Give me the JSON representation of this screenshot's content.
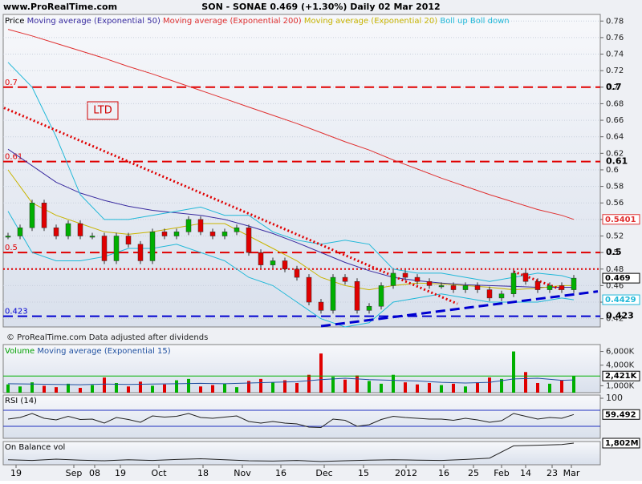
{
  "header": {
    "site": "www.ProRealTime.com",
    "title": "SON - SONAE   0.469 (+1.30%)   Daily 02 Mar 2012",
    "footer": "© ProRealTime.com  Data adjusted after dividends"
  },
  "chart_data": [
    {
      "type": "candlestick",
      "name": "Price",
      "x": [
        1,
        4,
        7,
        10,
        13,
        16,
        19,
        22,
        25,
        28,
        31,
        34,
        37,
        40,
        43,
        46,
        49,
        52,
        55,
        58,
        61,
        64,
        67,
        70,
        73,
        76,
        79,
        82,
        85,
        88,
        91,
        94,
        97,
        100,
        103,
        106,
        109,
        112,
        115,
        118,
        121,
        124,
        127,
        130,
        133,
        136,
        139,
        142
      ],
      "values": [
        0.52,
        0.53,
        0.56,
        0.53,
        0.52,
        0.535,
        0.52,
        0.52,
        0.49,
        0.52,
        0.51,
        0.49,
        0.525,
        0.52,
        0.525,
        0.54,
        0.525,
        0.52,
        0.525,
        0.53,
        0.5,
        0.485,
        0.49,
        0.48,
        0.47,
        0.44,
        0.43,
        0.47,
        0.465,
        0.43,
        0.435,
        0.46,
        0.475,
        0.47,
        0.465,
        0.46,
        0.46,
        0.455,
        0.46,
        0.455,
        0.445,
        0.45,
        0.475,
        0.465,
        0.455,
        0.46,
        0.455,
        0.469
      ],
      "up_color": "#00b000",
      "down_color": "#e00000",
      "series": [
        {
          "name": "Moving average (Exponential 50)",
          "color": "#3a2ca0",
          "x": [
            1,
            7,
            13,
            19,
            25,
            31,
            37,
            43,
            49,
            55,
            61,
            67,
            73,
            79,
            85,
            91,
            97,
            103,
            109,
            115,
            121,
            127,
            133,
            139,
            142
          ],
          "values": [
            0.625,
            0.605,
            0.585,
            0.572,
            0.563,
            0.556,
            0.551,
            0.548,
            0.545,
            0.54,
            0.532,
            0.523,
            0.512,
            0.5,
            0.488,
            0.478,
            0.47,
            0.466,
            0.463,
            0.461,
            0.46,
            0.459,
            0.458,
            0.458,
            0.458
          ]
        },
        {
          "name": "Moving average (Exponential 200)",
          "color": "#e03030",
          "label_box": true,
          "x": [
            1,
            7,
            13,
            19,
            25,
            31,
            37,
            43,
            49,
            55,
            61,
            67,
            73,
            79,
            85,
            91,
            97,
            103,
            109,
            115,
            121,
            127,
            133,
            139,
            142
          ],
          "values": [
            0.77,
            0.762,
            0.753,
            0.744,
            0.735,
            0.725,
            0.716,
            0.706,
            0.696,
            0.686,
            0.676,
            0.666,
            0.656,
            0.645,
            0.634,
            0.624,
            0.612,
            0.601,
            0.59,
            0.58,
            0.57,
            0.561,
            0.552,
            0.545,
            0.5401
          ]
        },
        {
          "name": "Moving average (Exponential 20)",
          "color": "#c8b400",
          "x": [
            1,
            7,
            13,
            19,
            25,
            31,
            37,
            43,
            49,
            55,
            61,
            67,
            73,
            79,
            85,
            91,
            97,
            103,
            109,
            115,
            121,
            127,
            133,
            139,
            142
          ],
          "values": [
            0.6,
            0.56,
            0.545,
            0.535,
            0.525,
            0.522,
            0.525,
            0.53,
            0.535,
            0.535,
            0.52,
            0.505,
            0.49,
            0.47,
            0.46,
            0.455,
            0.46,
            0.463,
            0.462,
            0.46,
            0.458,
            0.455,
            0.457,
            0.46,
            0.46
          ]
        },
        {
          "name": "Boll up",
          "color": "#20b8d8",
          "x": [
            1,
            7,
            13,
            19,
            25,
            31,
            37,
            43,
            49,
            55,
            61,
            67,
            73,
            79,
            85,
            91,
            97,
            103,
            109,
            115,
            121,
            127,
            133,
            139,
            142
          ],
          "values": [
            0.73,
            0.7,
            0.64,
            0.57,
            0.54,
            0.54,
            0.545,
            0.55,
            0.555,
            0.545,
            0.545,
            0.525,
            0.515,
            0.51,
            0.515,
            0.51,
            0.48,
            0.475,
            0.475,
            0.47,
            0.465,
            0.47,
            0.475,
            0.472,
            0.468
          ]
        },
        {
          "name": "Boll down",
          "color": "#20b8d8",
          "label_box": true,
          "x": [
            1,
            7,
            13,
            19,
            25,
            31,
            37,
            43,
            49,
            55,
            61,
            67,
            73,
            79,
            85,
            91,
            97,
            103,
            109,
            115,
            121,
            127,
            133,
            139,
            142
          ],
          "values": [
            0.55,
            0.5,
            0.49,
            0.49,
            0.495,
            0.505,
            0.505,
            0.51,
            0.5,
            0.49,
            0.47,
            0.46,
            0.44,
            0.42,
            0.41,
            0.415,
            0.44,
            0.445,
            0.45,
            0.445,
            0.44,
            0.44,
            0.44,
            0.445,
            0.4429
          ]
        }
      ],
      "ylim": [
        0.41,
        0.788
      ],
      "yticks": [
        0.42,
        0.44,
        0.46,
        0.48,
        0.5,
        0.52,
        0.54,
        0.56,
        0.58,
        0.6,
        0.62,
        0.64,
        0.66,
        0.68,
        0.7,
        0.72,
        0.74,
        0.76,
        0.78
      ],
      "grid": true,
      "hlines": [
        {
          "value": 0.7,
          "label": "0.7",
          "color": "#e00000",
          "style": "dash"
        },
        {
          "value": 0.61,
          "label": "0.61",
          "color": "#e00000",
          "style": "dash"
        },
        {
          "value": 0.5,
          "label": "0.5",
          "color": "#e00000",
          "style": "dash"
        },
        {
          "value": 0.423,
          "label": "0.423",
          "color": "#0000d0",
          "style": "dash"
        },
        {
          "value": 0.48,
          "color": "#e00000",
          "style": "dot"
        }
      ],
      "trendlines": [
        {
          "x": [
            0,
            113
          ],
          "y": [
            0.675,
            0.438
          ],
          "color": "#e00000",
          "style": "dot"
        },
        {
          "x": [
            79,
            148
          ],
          "y": [
            0.411,
            0.453
          ],
          "color": "#0000d0",
          "style": "dash"
        },
        {
          "x": [
            127,
            139
          ],
          "y": [
            0.477,
            0.455
          ],
          "color": "#e00000",
          "style": "dot"
        }
      ],
      "annotation": "LTD"
    },
    {
      "type": "bar",
      "name": "Volume",
      "x": [
        1,
        4,
        7,
        10,
        13,
        16,
        19,
        22,
        25,
        28,
        31,
        34,
        37,
        40,
        43,
        46,
        49,
        52,
        55,
        58,
        61,
        64,
        67,
        70,
        73,
        76,
        79,
        82,
        85,
        88,
        91,
        94,
        97,
        100,
        103,
        106,
        109,
        112,
        115,
        118,
        121,
        124,
        127,
        130,
        133,
        136,
        139,
        142
      ],
      "values": [
        1200,
        900,
        1500,
        1000,
        800,
        1300,
        700,
        1100,
        2200,
        1400,
        900,
        1600,
        1000,
        1200,
        1800,
        2000,
        900,
        1100,
        1300,
        800,
        1700,
        2000,
        1500,
        1800,
        1400,
        2600,
        5700,
        2300,
        1900,
        2500,
        1700,
        1300,
        2600,
        1500,
        1200,
        1400,
        1100,
        1300,
        900,
        1500,
        2200,
        2000,
        6000,
        3000,
        1400,
        1300,
        1800,
        2421
      ],
      "last_label": "2,421K",
      "series": [
        {
          "name": "Moving average (Exponential 15)",
          "color": "#2050a0",
          "x": [
            1,
            7,
            13,
            19,
            25,
            31,
            37,
            43,
            49,
            55,
            61,
            67,
            73,
            79,
            85,
            91,
            97,
            103,
            109,
            115,
            121,
            127,
            133,
            139,
            142
          ],
          "values": [
            1300,
            1250,
            1200,
            1150,
            1250,
            1200,
            1250,
            1300,
            1350,
            1300,
            1400,
            1500,
            1600,
            1900,
            2100,
            1900,
            1800,
            1700,
            1500,
            1400,
            1500,
            2000,
            2100,
            1800,
            1850
          ]
        }
      ],
      "ylim": [
        0,
        7000
      ],
      "yticks": [
        {
          "value": 6000,
          "label": "6,000K"
        },
        {
          "value": 4000,
          "label": "4,000K"
        },
        {
          "value": 1000,
          "label": "1,000K"
        }
      ]
    },
    {
      "type": "line",
      "name": "RSI (14)",
      "color": "#202020",
      "x": [
        1,
        4,
        7,
        10,
        13,
        16,
        19,
        22,
        25,
        28,
        31,
        34,
        37,
        40,
        43,
        46,
        49,
        52,
        55,
        58,
        61,
        64,
        67,
        70,
        73,
        76,
        79,
        82,
        85,
        88,
        91,
        94,
        97,
        100,
        103,
        106,
        109,
        112,
        115,
        118,
        121,
        124,
        127,
        130,
        133,
        136,
        139,
        142
      ],
      "values": [
        48,
        52,
        62,
        50,
        46,
        55,
        47,
        48,
        38,
        52,
        47,
        40,
        56,
        53,
        55,
        62,
        52,
        50,
        53,
        56,
        42,
        38,
        42,
        38,
        36,
        28,
        27,
        48,
        45,
        30,
        34,
        47,
        55,
        52,
        50,
        48,
        48,
        45,
        50,
        46,
        40,
        44,
        62,
        55,
        48,
        52,
        50,
        59.492
      ],
      "levels": [
        70,
        30
      ],
      "level_color": "#2030c0",
      "ylim": [
        0,
        108
      ],
      "yticks": [
        100
      ]
    },
    {
      "type": "line",
      "name": "On Balance vol",
      "color": "#202020",
      "x": [
        1,
        7,
        13,
        19,
        25,
        31,
        37,
        43,
        49,
        55,
        61,
        67,
        73,
        79,
        85,
        91,
        97,
        103,
        109,
        115,
        121,
        127,
        133,
        139,
        142
      ],
      "values": [
        1300,
        1280,
        1320,
        1290,
        1270,
        1300,
        1280,
        1310,
        1330,
        1300,
        1270,
        1260,
        1280,
        1250,
        1270,
        1290,
        1300,
        1290,
        1280,
        1310,
        1350,
        1720,
        1740,
        1760,
        1802
      ],
      "last_label": "1,802M",
      "ylim": [
        1150,
        1850
      ],
      "xlim": [
        0,
        148.6
      ],
      "xticks": [
        {
          "value": 3,
          "label": "19"
        },
        {
          "value": 17.4,
          "label": "Sep"
        },
        {
          "value": 22.6,
          "label": "08"
        },
        {
          "value": 29,
          "label": "19"
        },
        {
          "value": 38.6,
          "label": "Oct"
        },
        {
          "value": 49.6,
          "label": "18"
        },
        {
          "value": 59.4,
          "label": "Nov"
        },
        {
          "value": 69,
          "label": "16"
        },
        {
          "value": 79.8,
          "label": "Dec"
        },
        {
          "value": 89.6,
          "label": "15"
        },
        {
          "value": 100.2,
          "label": "2012"
        },
        {
          "value": 109.6,
          "label": "16"
        },
        {
          "value": 117,
          "label": "25"
        },
        {
          "value": 124,
          "label": "Feb"
        },
        {
          "value": 130,
          "label": "14"
        },
        {
          "value": 136.6,
          "label": "23"
        },
        {
          "value": 141.4,
          "label": "Mar"
        }
      ]
    }
  ]
}
